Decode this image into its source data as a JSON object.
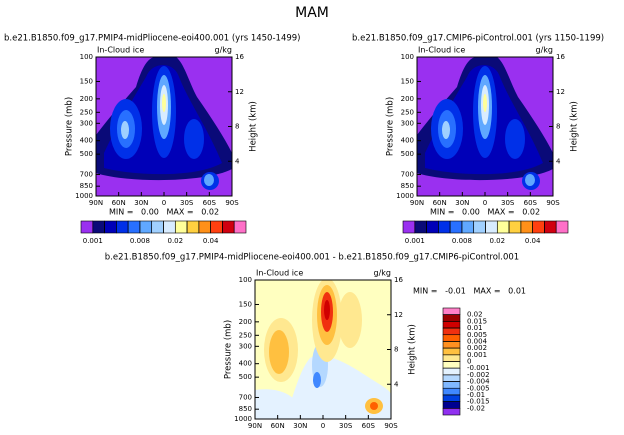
{
  "title": "MAM",
  "chart_data": [
    {
      "type": "contour",
      "title": "b.e21.B1850.f09_g17.PMIP4-midPliocene-eoi400.001 (yrs 1450-1499)",
      "subtitle_left": "In-Cloud ice",
      "subtitle_right": "g/kg",
      "ylabel": "Pressure (mb)",
      "y2label": "Height (km)",
      "stats": "MIN =   0.00   MAX =   0.02",
      "xlim": [
        90,
        -90
      ],
      "xticks": [
        {
          "value": 90,
          "label": "90N"
        },
        {
          "value": 60,
          "label": "60N"
        },
        {
          "value": 30,
          "label": "30N"
        },
        0,
        {
          "value": -30,
          "label": "30S"
        },
        {
          "value": -60,
          "label": "60S"
        },
        {
          "value": -90,
          "label": "90S"
        }
      ],
      "ylim": [
        1000,
        100
      ],
      "ylog": true,
      "yticks": [
        100,
        150,
        200,
        250,
        300,
        400,
        500,
        700,
        850,
        1000
      ],
      "y2lim": [
        0,
        16
      ],
      "y2ticks": [
        4,
        8,
        12,
        16
      ],
      "colorbar": {
        "orientation": "horizontal",
        "colors": [
          "#9a30f0",
          "#0a0a78",
          "#0000b8",
          "#0030e8",
          "#2870ff",
          "#60a8ff",
          "#a0d0ff",
          "#d8ecff",
          "#ffff9a",
          "#ffd040",
          "#ff9018",
          "#ff4010",
          "#d00010",
          "#ff70c8"
        ],
        "levels": [
          0.001,
          0.002,
          0.004,
          0.006,
          0.008,
          0.01,
          0.015,
          0.02,
          0.025,
          0.03,
          0.04,
          0.05,
          0.06
        ],
        "ticks": [
          0.001,
          0.008,
          0.02,
          0.04
        ]
      }
    },
    {
      "type": "contour",
      "title": "b.e21.B1850.f09_g17.CMIP6-piControl.001 (yrs 1150-1199)",
      "subtitle_left": "In-Cloud ice",
      "subtitle_right": "g/kg",
      "ylabel": "Pressure (mb)",
      "y2label": "Height (km)",
      "stats": "MIN =   0.00   MAX =   0.02",
      "xlim": [
        90,
        -90
      ],
      "xticks": [
        {
          "value": 90,
          "label": "90N"
        },
        {
          "value": 60,
          "label": "60N"
        },
        {
          "value": 30,
          "label": "30N"
        },
        0,
        {
          "value": -30,
          "label": "30S"
        },
        {
          "value": -60,
          "label": "60S"
        },
        {
          "value": -90,
          "label": "90S"
        }
      ],
      "ylim": [
        1000,
        100
      ],
      "ylog": true,
      "yticks": [
        100,
        150,
        200,
        250,
        300,
        400,
        500,
        700,
        850,
        1000
      ],
      "y2lim": [
        0,
        16
      ],
      "y2ticks": [
        4,
        8,
        12,
        16
      ],
      "colorbar": {
        "orientation": "horizontal",
        "colors": [
          "#9a30f0",
          "#0a0a78",
          "#0000b8",
          "#0030e8",
          "#2870ff",
          "#60a8ff",
          "#a0d0ff",
          "#d8ecff",
          "#ffff9a",
          "#ffd040",
          "#ff9018",
          "#ff4010",
          "#d00010",
          "#ff70c8"
        ],
        "levels": [
          0.001,
          0.002,
          0.004,
          0.006,
          0.008,
          0.01,
          0.015,
          0.02,
          0.025,
          0.03,
          0.04,
          0.05,
          0.06
        ],
        "ticks": [
          0.001,
          0.008,
          0.02,
          0.04
        ]
      }
    },
    {
      "type": "contour",
      "title": "b.e21.B1850.f09_g17.PMIP4-midPliocene-eoi400.001 - b.e21.B1850.f09_g17.CMIP6-piControl.001",
      "subtitle_left": "In-Cloud ice",
      "subtitle_right": "g/kg",
      "ylabel": "Pressure (mb)",
      "y2label": "Height (km)",
      "stats": "MIN =   -0.01   MAX =   0.01",
      "xlim": [
        90,
        -90
      ],
      "xticks": [
        {
          "value": 90,
          "label": "90N"
        },
        {
          "value": 60,
          "label": "60N"
        },
        {
          "value": 30,
          "label": "30N"
        },
        0,
        {
          "value": -30,
          "label": "30S"
        },
        {
          "value": -60,
          "label": "60S"
        },
        {
          "value": -90,
          "label": "90S"
        }
      ],
      "ylim": [
        1000,
        100
      ],
      "ylog": true,
      "yticks": [
        100,
        150,
        200,
        250,
        300,
        400,
        500,
        700,
        850,
        1000
      ],
      "y2lim": [
        0,
        16
      ],
      "y2ticks": [
        4,
        8,
        12,
        16
      ],
      "colorbar": {
        "orientation": "vertical",
        "colors": [
          "#ff80c8",
          "#9a0000",
          "#d00000",
          "#f03010",
          "#ff6000",
          "#ff9020",
          "#ffc040",
          "#ffe890",
          "#ffffc0",
          "#e4f2ff",
          "#b4d8ff",
          "#80b8ff",
          "#4088ff",
          "#0040e0",
          "#000090",
          "#9030f0"
        ],
        "levels": [
          0.02,
          0.015,
          0.01,
          0.005,
          0.004,
          0.002,
          0.001,
          0,
          -0.001,
          -0.002,
          -0.004,
          -0.005,
          -0.01,
          -0.015,
          -0.02
        ]
      }
    }
  ]
}
